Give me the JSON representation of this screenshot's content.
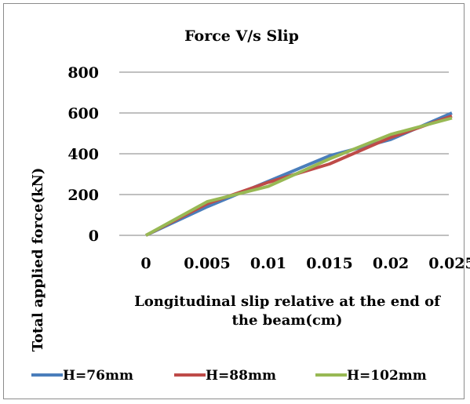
{
  "chart_data": {
    "type": "line",
    "title": "Force V/s Slip",
    "xlabel_lines": [
      "Longitudinal slip relative at the end of",
      "the beam(cm)"
    ],
    "ylabel": "Total applied force(kN)",
    "categories": [
      "0",
      "0.005",
      "0.01",
      "0.015",
      "0.02",
      "0.025"
    ],
    "ylim": [
      0,
      800
    ],
    "yticks": [
      "0",
      "200",
      "400",
      "600",
      "800"
    ],
    "grid": true,
    "legend_position": "bottom",
    "series": [
      {
        "name": "H=76mm",
        "color": "#4a7ebb",
        "values": [
          0,
          140,
          265,
          390,
          470,
          600
        ]
      },
      {
        "name": "H=88mm",
        "color": "#be4b48",
        "values": [
          0,
          155,
          260,
          350,
          480,
          585
        ]
      },
      {
        "name": "H=102mm",
        "color": "#98b954",
        "values": [
          0,
          165,
          240,
          375,
          495,
          575
        ]
      }
    ]
  }
}
